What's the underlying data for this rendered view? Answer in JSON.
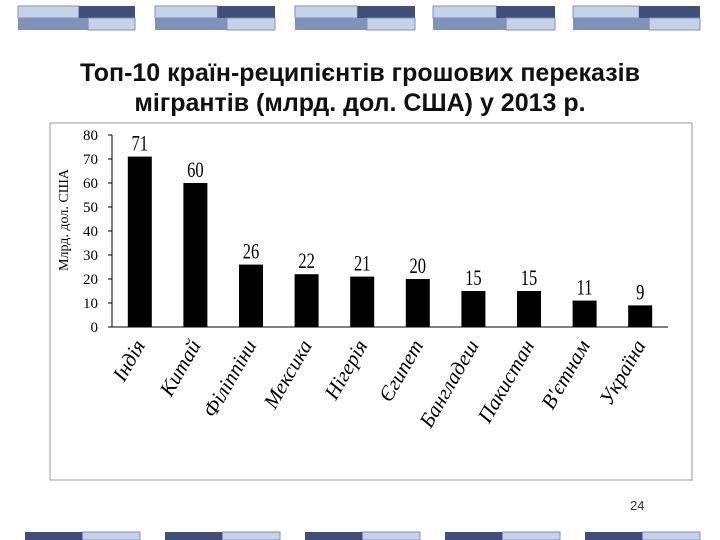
{
  "slide": {
    "page_number": "24",
    "colors": {
      "deco_dark": "#3f4f7a",
      "deco_light": "#c5d3e8",
      "deco_mid": "#7f93b8",
      "bars": "#000000"
    }
  },
  "chart_data": {
    "type": "bar",
    "title": "Топ-10 країн-реципієнтів грошових переказів мігрантів (млрд. дол. США) у 2013 р.",
    "ylabel": "Млрд. дол. США",
    "xlabel": "",
    "categories": [
      "Індія",
      "Китай",
      "Філіппіни",
      "Мексика",
      "Нігерія",
      "Єгипет",
      "Бангладеш",
      "Пакистан",
      "В'єтнам",
      "Україна"
    ],
    "values": [
      71,
      60,
      26,
      22,
      21,
      20,
      15,
      15,
      11,
      9
    ],
    "data_labels": [
      "71",
      "60",
      "26",
      "22",
      "21",
      "20",
      "15",
      "15",
      "11",
      "9"
    ],
    "ylim": [
      0,
      80
    ],
    "yticks": [
      0,
      10,
      20,
      30,
      40,
      50,
      60,
      70,
      80
    ],
    "grid": false,
    "legend": "none",
    "bar_color": "#000000"
  }
}
